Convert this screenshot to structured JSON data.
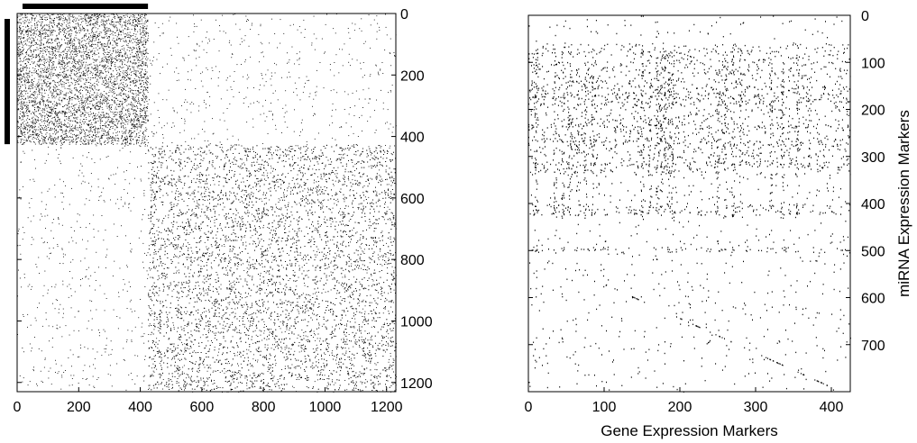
{
  "chart_data": [
    {
      "type": "heatmap",
      "title": "",
      "xlabel": "",
      "ylabel": "",
      "xlim": [
        0,
        1230
      ],
      "ylim": [
        1230,
        0
      ],
      "x_ticks": [
        0,
        200,
        400,
        600,
        800,
        1000,
        1200
      ],
      "y_ticks": [
        0,
        200,
        400,
        600,
        800,
        1000,
        1200
      ],
      "block_boundary": 425,
      "blocks": [
        {
          "rows": [
            0,
            425
          ],
          "cols": [
            0,
            425
          ],
          "density": 0.22
        },
        {
          "rows": [
            0,
            425
          ],
          "cols": [
            425,
            1230
          ],
          "density": 0.012
        },
        {
          "rows": [
            425,
            1230
          ],
          "cols": [
            0,
            425
          ],
          "density": 0.012
        },
        {
          "rows": [
            425,
            1230
          ],
          "cols": [
            425,
            1230
          ],
          "density": 0.12
        }
      ],
      "highlight_bars": {
        "top": [
          0,
          425
        ],
        "left": [
          0,
          425
        ]
      },
      "colors": {
        "marker": "#000000",
        "background": "#ffffff"
      }
    },
    {
      "type": "heatmap",
      "title": "",
      "xlabel": "Gene Expression Markers",
      "ylabel": "miRNA Expression Markers",
      "xlim": [
        0,
        425
      ],
      "ylim": [
        800,
        0
      ],
      "x_ticks": [
        0,
        100,
        200,
        300,
        400
      ],
      "y_ticks": [
        0,
        100,
        200,
        300,
        400,
        500,
        600,
        700
      ],
      "dense_rows": [
        155,
        165,
        175,
        185,
        235,
        265,
        275,
        315,
        405,
        415,
        420,
        495,
        500
      ],
      "dense_cols": [
        10,
        35,
        45,
        55,
        65,
        75,
        85,
        150,
        160,
        170,
        175,
        180,
        185,
        190,
        250,
        260,
        270,
        280,
        320,
        335,
        355
      ],
      "colors": {
        "marker": "#000000",
        "background": "#ffffff"
      }
    }
  ]
}
